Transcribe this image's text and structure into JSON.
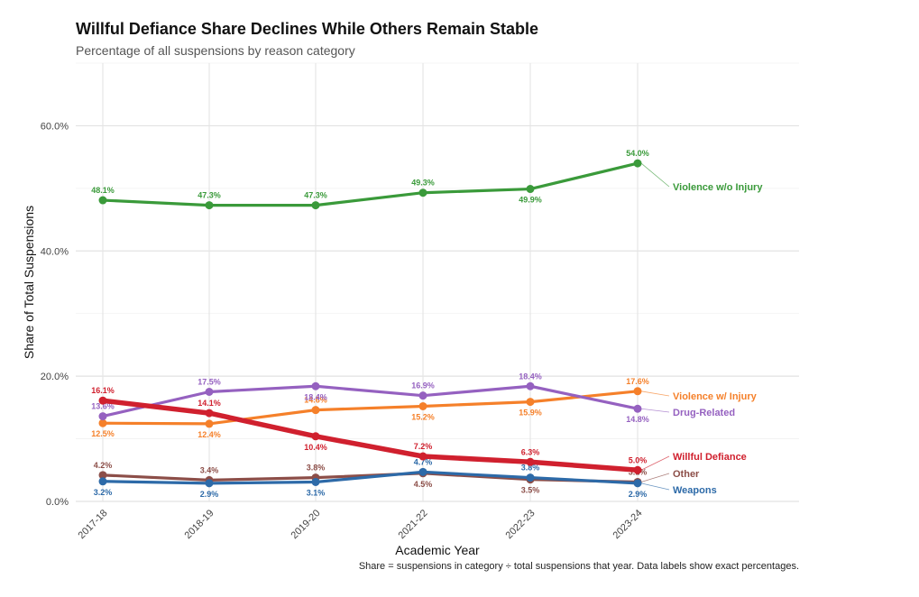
{
  "chart_data": {
    "type": "line",
    "title": "Willful Defiance Share Declines While Others Remain Stable",
    "subtitle": "Percentage of all suspensions by reason category",
    "xlabel": "Academic Year",
    "ylabel": "Share of Total Suspensions",
    "caption": "Share = suspensions in category ÷ total suspensions that year. Data labels show exact percentages.",
    "categories": [
      "2017-18",
      "2018-19",
      "2019-20",
      "2021-22",
      "2022-23",
      "2023-24"
    ],
    "ylim": [
      0,
      70
    ],
    "yticks": [
      0,
      20,
      40,
      60
    ],
    "ytick_labels": [
      "0.0%",
      "20.0%",
      "40.0%",
      "60.0%"
    ],
    "grid": true,
    "legend": "direct labels at line ends",
    "series": [
      {
        "name": "Violence w/o Injury",
        "color": "#3a9a3a",
        "values": [
          48.1,
          47.3,
          47.3,
          49.3,
          49.9,
          54.0
        ],
        "labels": [
          "48.1%",
          "47.3%",
          "47.3%",
          "49.3%",
          "49.9%",
          "54.0%"
        ]
      },
      {
        "name": "Violence w/ Injury",
        "color": "#f5802a",
        "values": [
          12.5,
          12.4,
          14.6,
          15.2,
          15.9,
          17.6
        ],
        "labels": [
          "12.5%",
          "12.4%",
          "14.6%",
          "15.2%",
          "15.9%",
          "17.6%"
        ]
      },
      {
        "name": "Drug-Related",
        "color": "#9561c0",
        "values": [
          13.6,
          17.5,
          18.4,
          16.9,
          18.4,
          14.8
        ],
        "labels": [
          "13.6%",
          "17.5%",
          "18.4%",
          "16.9%",
          "18.4%",
          "14.8%"
        ]
      },
      {
        "name": "Willful Defiance",
        "color": "#d0202e",
        "values": [
          16.1,
          14.1,
          10.4,
          7.2,
          6.3,
          5.0
        ],
        "labels": [
          "16.1%",
          "14.1%",
          "10.4%",
          "7.2%",
          "6.3%",
          "5.0%"
        ]
      },
      {
        "name": "Other",
        "color": "#8c4e48",
        "values": [
          4.2,
          3.4,
          3.8,
          4.5,
          3.5,
          3.1
        ],
        "labels": [
          "4.2%",
          "3.4%",
          "3.8%",
          "4.5%",
          "3.5%",
          "3.1%"
        ]
      },
      {
        "name": "Weapons",
        "color": "#2d6aa8",
        "values": [
          3.2,
          2.9,
          3.1,
          4.7,
          3.8,
          2.9
        ],
        "labels": [
          "3.2%",
          "2.9%",
          "3.1%",
          "4.7%",
          "3.8%",
          "2.9%"
        ]
      }
    ]
  }
}
